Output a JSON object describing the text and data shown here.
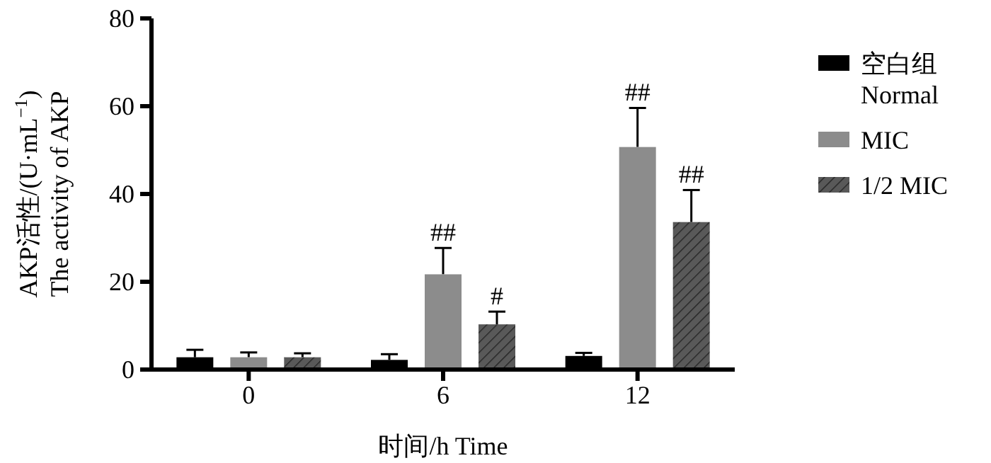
{
  "chart_data": {
    "type": "bar",
    "categories": [
      "0",
      "6",
      "12"
    ],
    "series": [
      {
        "name": "空白组\nNormal",
        "color": "#000000",
        "values": [
          2.8,
          2.2,
          3.1
        ],
        "errors": [
          1.7,
          1.3,
          0.7
        ]
      },
      {
        "name": "MIC",
        "color": "#8c8c8c",
        "values": [
          2.8,
          21.7,
          50.7
        ],
        "errors": [
          1.1,
          6.0,
          8.9
        ],
        "value_labels": [
          null,
          "##",
          "##"
        ]
      },
      {
        "name": "1/2 MIC",
        "color": "#595959",
        "values": [
          2.8,
          10.3,
          33.6
        ],
        "errors": [
          0.9,
          2.9,
          7.3
        ],
        "value_labels": [
          null,
          "#",
          "##"
        ]
      }
    ],
    "ylim": [
      0,
      80
    ],
    "yticks": [
      0,
      20,
      40,
      60,
      80
    ],
    "xlabel": "时间/h Time",
    "ylabel": "AKP活性/(U·mL$^{−1}$)\nThe activity of AKP",
    "legend": "right"
  }
}
